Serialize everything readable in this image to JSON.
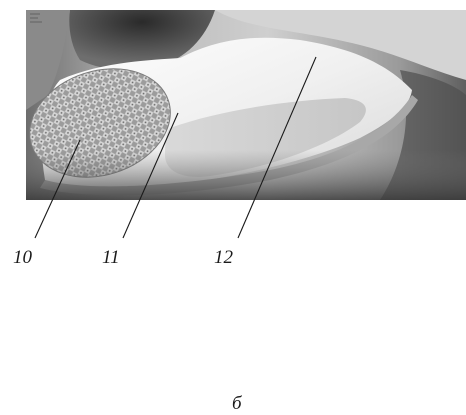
{
  "figure": {
    "panel_letter": "б",
    "callouts": [
      {
        "label": "10"
      },
      {
        "label": "11"
      },
      {
        "label": "12"
      }
    ]
  }
}
